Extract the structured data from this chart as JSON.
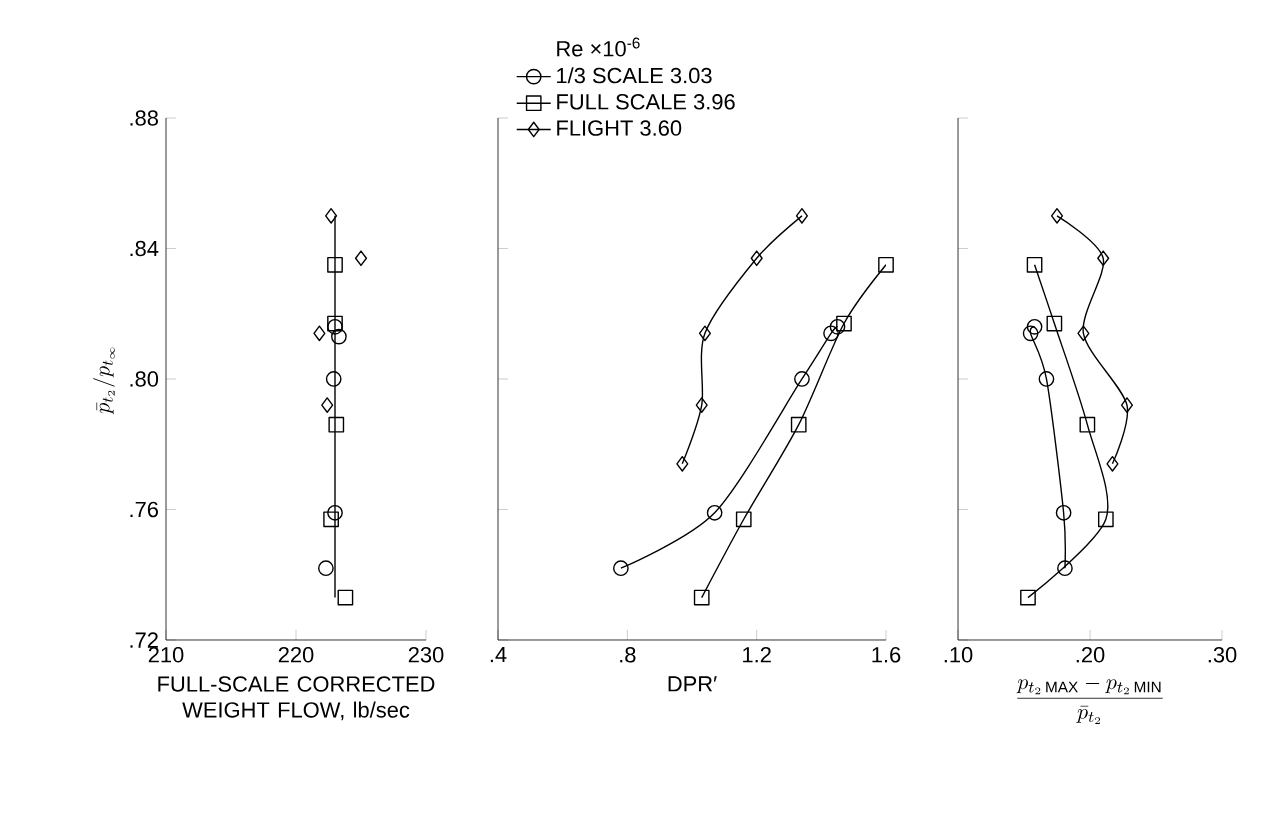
{
  "chart_data": [
    {
      "type": "scatter",
      "ylabel": "\\bar{p}_{t_2}/p_{t_\\infty}",
      "xlabel": "FULL-SCALE CORRECTED WEIGHT FLOW, lb/sec",
      "xlim": [
        210,
        230
      ],
      "xticks": [
        210,
        220,
        230
      ],
      "ylim": [
        0.72,
        0.88
      ],
      "yticks": [
        {
          "value": 0.72,
          "label": ".72"
        },
        {
          "value": 0.76,
          "label": ".76"
        },
        {
          "value": 0.8,
          "label": ".80"
        },
        {
          "value": 0.84,
          "label": ".84"
        },
        {
          "value": 0.88,
          "label": ".88"
        }
      ],
      "series": [
        {
          "color": "#000000",
          "marker": "circle",
          "x": [
            222.3,
            223,
            222.9,
            223.3,
            223
          ],
          "values": [
            0.742,
            0.759,
            0.8,
            0.813,
            0.816
          ]
        },
        {
          "color": "#000000",
          "marker": "square",
          "x": [
            223.8,
            222.7,
            223.1,
            223,
            223
          ],
          "values": [
            0.733,
            0.757,
            0.786,
            0.817,
            0.835
          ]
        },
        {
          "color": "#000000",
          "marker": "diamond",
          "x": [
            222.4,
            221.8,
            225,
            222.7
          ],
          "values": [
            0.792,
            0.814,
            0.837,
            0.85
          ]
        },
        {
          "type": "line",
          "color": "#000000",
          "marker": "none",
          "x": [
            223,
            223
          ],
          "values": [
            0.733,
            0.85
          ]
        }
      ]
    },
    {
      "type": "line",
      "xlabel": "DPR′",
      "tick_labels": "x",
      "legend": "top left",
      "legend_title": "Re ×10$^{-6}$",
      "xlim": [
        0.4,
        1.6
      ],
      "xticks": [
        {
          "value": 0.4,
          "label": ".4"
        },
        {
          "value": 0.8,
          "label": ".8"
        },
        1.2,
        1.6
      ],
      "ylim": [
        0.72,
        0.88
      ],
      "yticks": [
        {
          "value": 0.72,
          "label": null
        },
        {
          "value": 0.76,
          "label": null
        },
        {
          "value": 0.8,
          "label": null
        },
        {
          "value": 0.84,
          "label": null
        },
        {
          "value": 0.88,
          "label": null
        }
      ],
      "series": [
        {
          "name": "1/3 SCALE      3.03",
          "color": "#000000",
          "marker": "circle",
          "x": [
            0.78,
            1.07,
            1.34,
            1.43,
            1.45
          ],
          "values": [
            0.742,
            0.759,
            0.8,
            0.814,
            0.816
          ]
        },
        {
          "name": "FULL SCALE   3.96",
          "color": "#000000",
          "marker": "square",
          "x": [
            1.03,
            1.16,
            1.33,
            1.47,
            1.6
          ],
          "values": [
            0.733,
            0.757,
            0.786,
            0.817,
            0.835
          ]
        },
        {
          "name": "FLIGHT           3.60",
          "color": "#000000",
          "marker": "diamond",
          "x": [
            0.97,
            1.03,
            1.04,
            1.2,
            1.34
          ],
          "values": [
            0.774,
            0.792,
            0.814,
            0.837,
            0.85
          ]
        }
      ]
    },
    {
      "type": "line",
      "xlabel": "\\frac{p_{t_2\\,\\mathrm{MAX}} - p_{t_2\\,\\mathrm{MIN}}}{\\bar{p}_{t_2}}",
      "tick_labels": "x",
      "xlim": [
        0.1,
        0.3
      ],
      "xticks": [
        {
          "value": 0.1,
          "label": ".10"
        },
        {
          "value": 0.2,
          "label": ".20"
        },
        {
          "value": 0.3,
          "label": ".30"
        }
      ],
      "ylim": [
        0.72,
        0.88
      ],
      "yticks": [
        {
          "value": 0.72,
          "label": null
        },
        {
          "value": 0.76,
          "label": null
        },
        {
          "value": 0.8,
          "label": null
        },
        {
          "value": 0.84,
          "label": null
        },
        {
          "value": 0.88,
          "label": null
        }
      ],
      "series": [
        {
          "color": "#000000",
          "marker": "circle",
          "x": [
            0.181,
            0.18,
            0.167,
            0.155,
            0.158
          ],
          "values": [
            0.742,
            0.759,
            0.8,
            0.814,
            0.816
          ]
        },
        {
          "color": "#000000",
          "marker": "square",
          "x": [
            0.153,
            0.212,
            0.198,
            0.173,
            0.158
          ],
          "values": [
            0.733,
            0.757,
            0.786,
            0.817,
            0.835
          ]
        },
        {
          "color": "#000000",
          "marker": "diamond",
          "x": [
            0.217,
            0.228,
            0.195,
            0.21,
            0.175
          ],
          "values": [
            0.774,
            0.792,
            0.814,
            0.837,
            0.85
          ]
        }
      ]
    }
  ]
}
